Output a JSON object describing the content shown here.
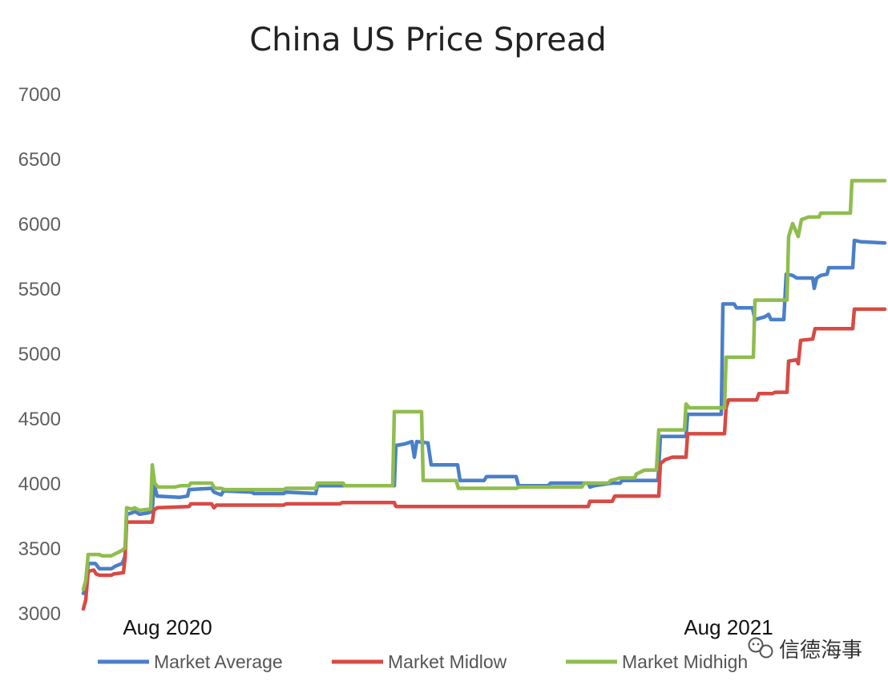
{
  "chart_data": {
    "type": "line",
    "title": "China US Price Spread",
    "xlabel": "",
    "ylabel": "",
    "ylim": [
      3000,
      7000
    ],
    "yticks": [
      3000,
      3500,
      4000,
      4500,
      5000,
      5500,
      6000,
      6500,
      7000
    ],
    "x_tick_labels": [
      {
        "label": "Aug 2020",
        "x": 10
      },
      {
        "label": "Aug 2021",
        "x": 80
      }
    ],
    "xlim": [
      0,
      100
    ],
    "grid": false,
    "legend_position": "bottom",
    "series": [
      {
        "name": "Market Average",
        "color": "#4a7fc9",
        "points": [
          [
            0,
            3150
          ],
          [
            0.3,
            3200
          ],
          [
            0.6,
            3380
          ],
          [
            1.5,
            3380
          ],
          [
            2,
            3340
          ],
          [
            3.5,
            3340
          ],
          [
            4,
            3360
          ],
          [
            4.8,
            3380
          ],
          [
            5,
            3400
          ],
          [
            5.2,
            3440
          ],
          [
            5.4,
            3760
          ],
          [
            6,
            3770
          ],
          [
            6.5,
            3780
          ],
          [
            7,
            3760
          ],
          [
            8,
            3770
          ],
          [
            8.6,
            3780
          ],
          [
            8.8,
            4000
          ],
          [
            9.2,
            3900
          ],
          [
            12,
            3890
          ],
          [
            13,
            3900
          ],
          [
            13.2,
            3950
          ],
          [
            16,
            3960
          ],
          [
            16.3,
            3930
          ],
          [
            17.2,
            3910
          ],
          [
            17.5,
            3940
          ],
          [
            21,
            3930
          ],
          [
            21.3,
            3920
          ],
          [
            25,
            3920
          ],
          [
            25.3,
            3930
          ],
          [
            29,
            3920
          ],
          [
            29.2,
            3980
          ],
          [
            37,
            3980
          ],
          [
            38.8,
            3980
          ],
          [
            39,
            4290
          ],
          [
            40,
            4300
          ],
          [
            41,
            4320
          ],
          [
            41.3,
            4200
          ],
          [
            41.6,
            4320
          ],
          [
            43,
            4310
          ],
          [
            43.4,
            4140
          ],
          [
            46.7,
            4140
          ],
          [
            47,
            4020
          ],
          [
            50,
            4020
          ],
          [
            50.3,
            4050
          ],
          [
            54,
            4050
          ],
          [
            54.3,
            3980
          ],
          [
            58,
            3980
          ],
          [
            58.3,
            4000
          ],
          [
            63,
            4000
          ],
          [
            63.2,
            3970
          ],
          [
            63.8,
            3980
          ],
          [
            66,
            4000
          ],
          [
            67,
            4000
          ],
          [
            67.2,
            4020
          ],
          [
            71.7,
            4020
          ],
          [
            72,
            4360
          ],
          [
            75.2,
            4360
          ],
          [
            75.4,
            4530
          ],
          [
            79.6,
            4530
          ],
          [
            79.8,
            5380
          ],
          [
            81.2,
            5380
          ],
          [
            81.5,
            5350
          ],
          [
            83.5,
            5350
          ],
          [
            83.8,
            5260
          ],
          [
            85,
            5280
          ],
          [
            85.5,
            5300
          ],
          [
            85.8,
            5260
          ],
          [
            87.4,
            5260
          ],
          [
            87.7,
            5610
          ],
          [
            88.5,
            5600
          ],
          [
            89,
            5580
          ],
          [
            91,
            5580
          ],
          [
            91.2,
            5500
          ],
          [
            91.5,
            5580
          ],
          [
            92,
            5600
          ],
          [
            92.8,
            5610
          ],
          [
            93,
            5660
          ],
          [
            96,
            5660
          ],
          [
            96.2,
            5870
          ],
          [
            97,
            5860
          ],
          [
            100,
            5850
          ]
        ]
      },
      {
        "name": "Market Midlow",
        "color": "#d84a44",
        "points": [
          [
            0,
            3030
          ],
          [
            0.3,
            3100
          ],
          [
            0.6,
            3320
          ],
          [
            1.3,
            3330
          ],
          [
            1.6,
            3300
          ],
          [
            2,
            3290
          ],
          [
            3.5,
            3290
          ],
          [
            3.8,
            3300
          ],
          [
            5,
            3310
          ],
          [
            5.2,
            3420
          ],
          [
            5.4,
            3700
          ],
          [
            8.6,
            3700
          ],
          [
            8.8,
            3790
          ],
          [
            9.2,
            3810
          ],
          [
            13.2,
            3820
          ],
          [
            13.4,
            3840
          ],
          [
            16,
            3840
          ],
          [
            16.3,
            3810
          ],
          [
            16.6,
            3830
          ],
          [
            25,
            3830
          ],
          [
            25.3,
            3840
          ],
          [
            32,
            3840
          ],
          [
            32.3,
            3850
          ],
          [
            38.8,
            3850
          ],
          [
            39,
            3820
          ],
          [
            63,
            3820
          ],
          [
            63.2,
            3860
          ],
          [
            66,
            3860
          ],
          [
            66.3,
            3900
          ],
          [
            71.8,
            3900
          ],
          [
            72,
            4150
          ],
          [
            72.6,
            4180
          ],
          [
            73.5,
            4200
          ],
          [
            75.2,
            4200
          ],
          [
            75.4,
            4380
          ],
          [
            80,
            4380
          ],
          [
            80.2,
            4580
          ],
          [
            80.5,
            4640
          ],
          [
            84,
            4640
          ],
          [
            84.3,
            4690
          ],
          [
            86,
            4690
          ],
          [
            86.3,
            4700
          ],
          [
            87.8,
            4700
          ],
          [
            88,
            4940
          ],
          [
            89,
            4950
          ],
          [
            89.2,
            4920
          ],
          [
            89.5,
            5100
          ],
          [
            91,
            5110
          ],
          [
            91.3,
            5190
          ],
          [
            96,
            5190
          ],
          [
            96.2,
            5340
          ],
          [
            100,
            5340
          ]
        ]
      },
      {
        "name": "Market Midhigh",
        "color": "#8fbd4e",
        "points": [
          [
            0,
            3180
          ],
          [
            0.3,
            3250
          ],
          [
            0.6,
            3450
          ],
          [
            2,
            3450
          ],
          [
            2.3,
            3440
          ],
          [
            3.5,
            3440
          ],
          [
            3.8,
            3450
          ],
          [
            4.8,
            3480
          ],
          [
            5.2,
            3500
          ],
          [
            5.4,
            3810
          ],
          [
            6,
            3800
          ],
          [
            6.4,
            3810
          ],
          [
            7,
            3790
          ],
          [
            8.4,
            3800
          ],
          [
            8.6,
            4140
          ],
          [
            8.9,
            4000
          ],
          [
            9.3,
            3970
          ],
          [
            11.4,
            3970
          ],
          [
            12.2,
            3980
          ],
          [
            13.2,
            3980
          ],
          [
            13.4,
            4000
          ],
          [
            16,
            4000
          ],
          [
            16.4,
            3960
          ],
          [
            17.2,
            3960
          ],
          [
            17.6,
            3950
          ],
          [
            25,
            3950
          ],
          [
            25.3,
            3960
          ],
          [
            29,
            3960
          ],
          [
            29.2,
            4000
          ],
          [
            32.4,
            4000
          ],
          [
            32.6,
            3980
          ],
          [
            38.6,
            3980
          ],
          [
            38.8,
            4550
          ],
          [
            42.2,
            4550
          ],
          [
            42.4,
            4020
          ],
          [
            46.5,
            4020
          ],
          [
            46.8,
            3960
          ],
          [
            54,
            3960
          ],
          [
            54.4,
            3970
          ],
          [
            62.2,
            3970
          ],
          [
            62.5,
            4000
          ],
          [
            65.5,
            4000
          ],
          [
            65.8,
            4020
          ],
          [
            67,
            4040
          ],
          [
            68.8,
            4040
          ],
          [
            69,
            4070
          ],
          [
            70,
            4100
          ],
          [
            71.5,
            4100
          ],
          [
            71.8,
            4410
          ],
          [
            75,
            4410
          ],
          [
            75.2,
            4610
          ],
          [
            75.6,
            4580
          ],
          [
            80,
            4580
          ],
          [
            80.2,
            4970
          ],
          [
            83.6,
            4970
          ],
          [
            83.8,
            5410
          ],
          [
            87.8,
            5410
          ],
          [
            88,
            5900
          ],
          [
            88.5,
            6000
          ],
          [
            89.2,
            5900
          ],
          [
            89.6,
            6030
          ],
          [
            90.5,
            6050
          ],
          [
            91.8,
            6050
          ],
          [
            92,
            6080
          ],
          [
            95.7,
            6080
          ],
          [
            95.9,
            6330
          ],
          [
            100,
            6330
          ]
        ]
      }
    ]
  },
  "watermark": {
    "icon": "wechat-icon",
    "text": "信德海事"
  }
}
